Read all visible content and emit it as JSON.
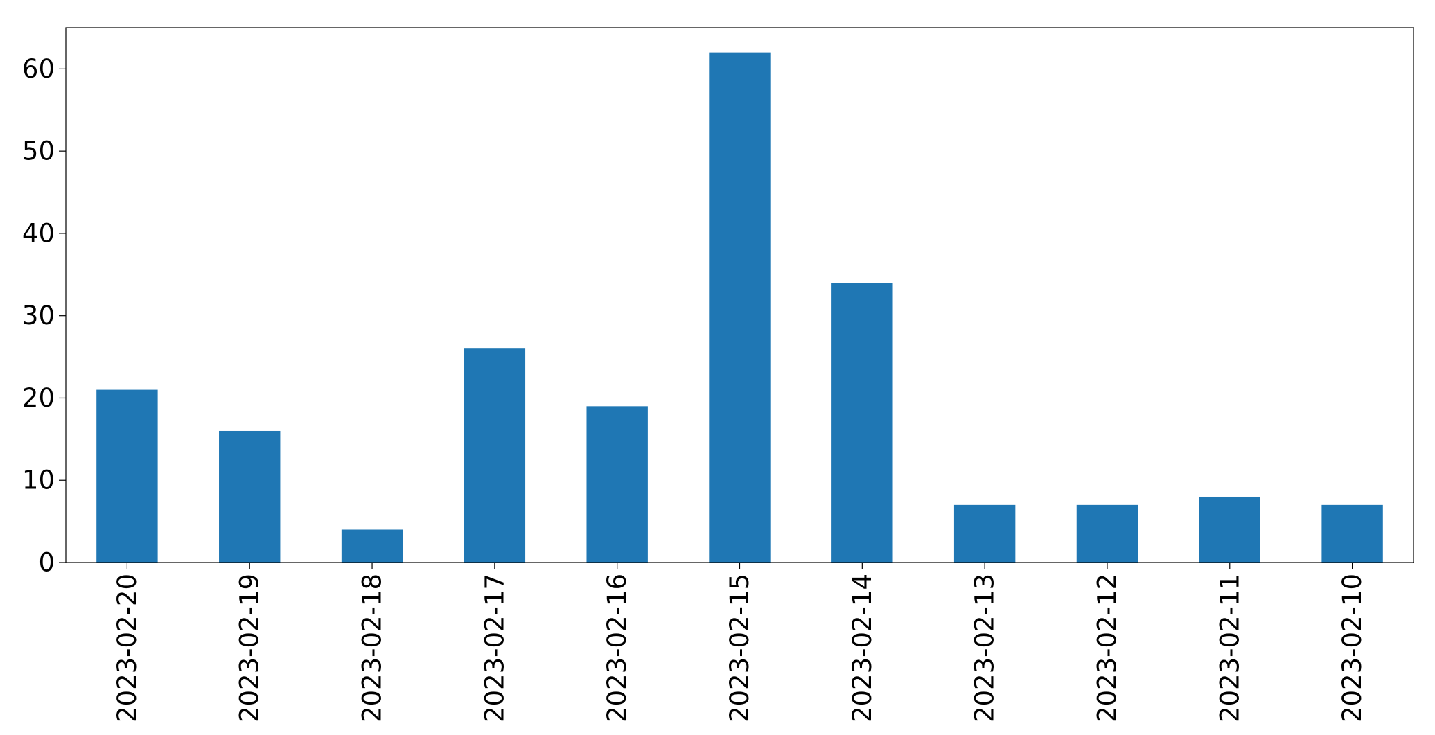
{
  "chart_data": {
    "type": "bar",
    "title": "",
    "xlabel": "",
    "ylabel": "",
    "categories": [
      "2023-02-20",
      "2023-02-19",
      "2023-02-18",
      "2023-02-17",
      "2023-02-16",
      "2023-02-15",
      "2023-02-14",
      "2023-02-13",
      "2023-02-12",
      "2023-02-11",
      "2023-02-10"
    ],
    "values": [
      21,
      16,
      4,
      26,
      19,
      62,
      34,
      7,
      7,
      8,
      7
    ],
    "ylim": [
      0,
      65
    ],
    "yticks": [
      0,
      10,
      20,
      30,
      40,
      50,
      60
    ],
    "grid": false,
    "legend": "none",
    "bar_color": "#1f77b4"
  }
}
